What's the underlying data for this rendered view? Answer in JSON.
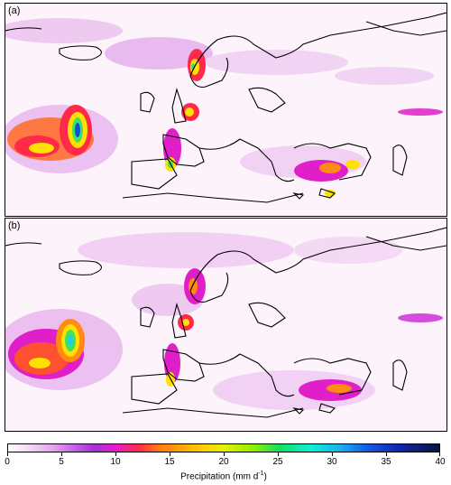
{
  "panels": [
    {
      "label": "(a)"
    },
    {
      "label": "(b)"
    }
  ],
  "colorbar": {
    "title_main": "Precipitation (mm d",
    "title_sup": "-1",
    "title_end": ")",
    "ticks": [
      "0",
      "5",
      "10",
      "15",
      "20",
      "25",
      "30",
      "35",
      "40"
    ],
    "min": 0,
    "max": 40
  },
  "colors": {
    "background": "#fdf4fb",
    "light": "#e9b6ee",
    "violet": "#b04ce0",
    "magenta": "#e01fc8",
    "red": "#ff2a4a",
    "orange": "#ff8c10",
    "yellow": "#ffe000",
    "green": "#40e060",
    "cyan": "#20d0e8",
    "blue": "#1050d8"
  }
}
